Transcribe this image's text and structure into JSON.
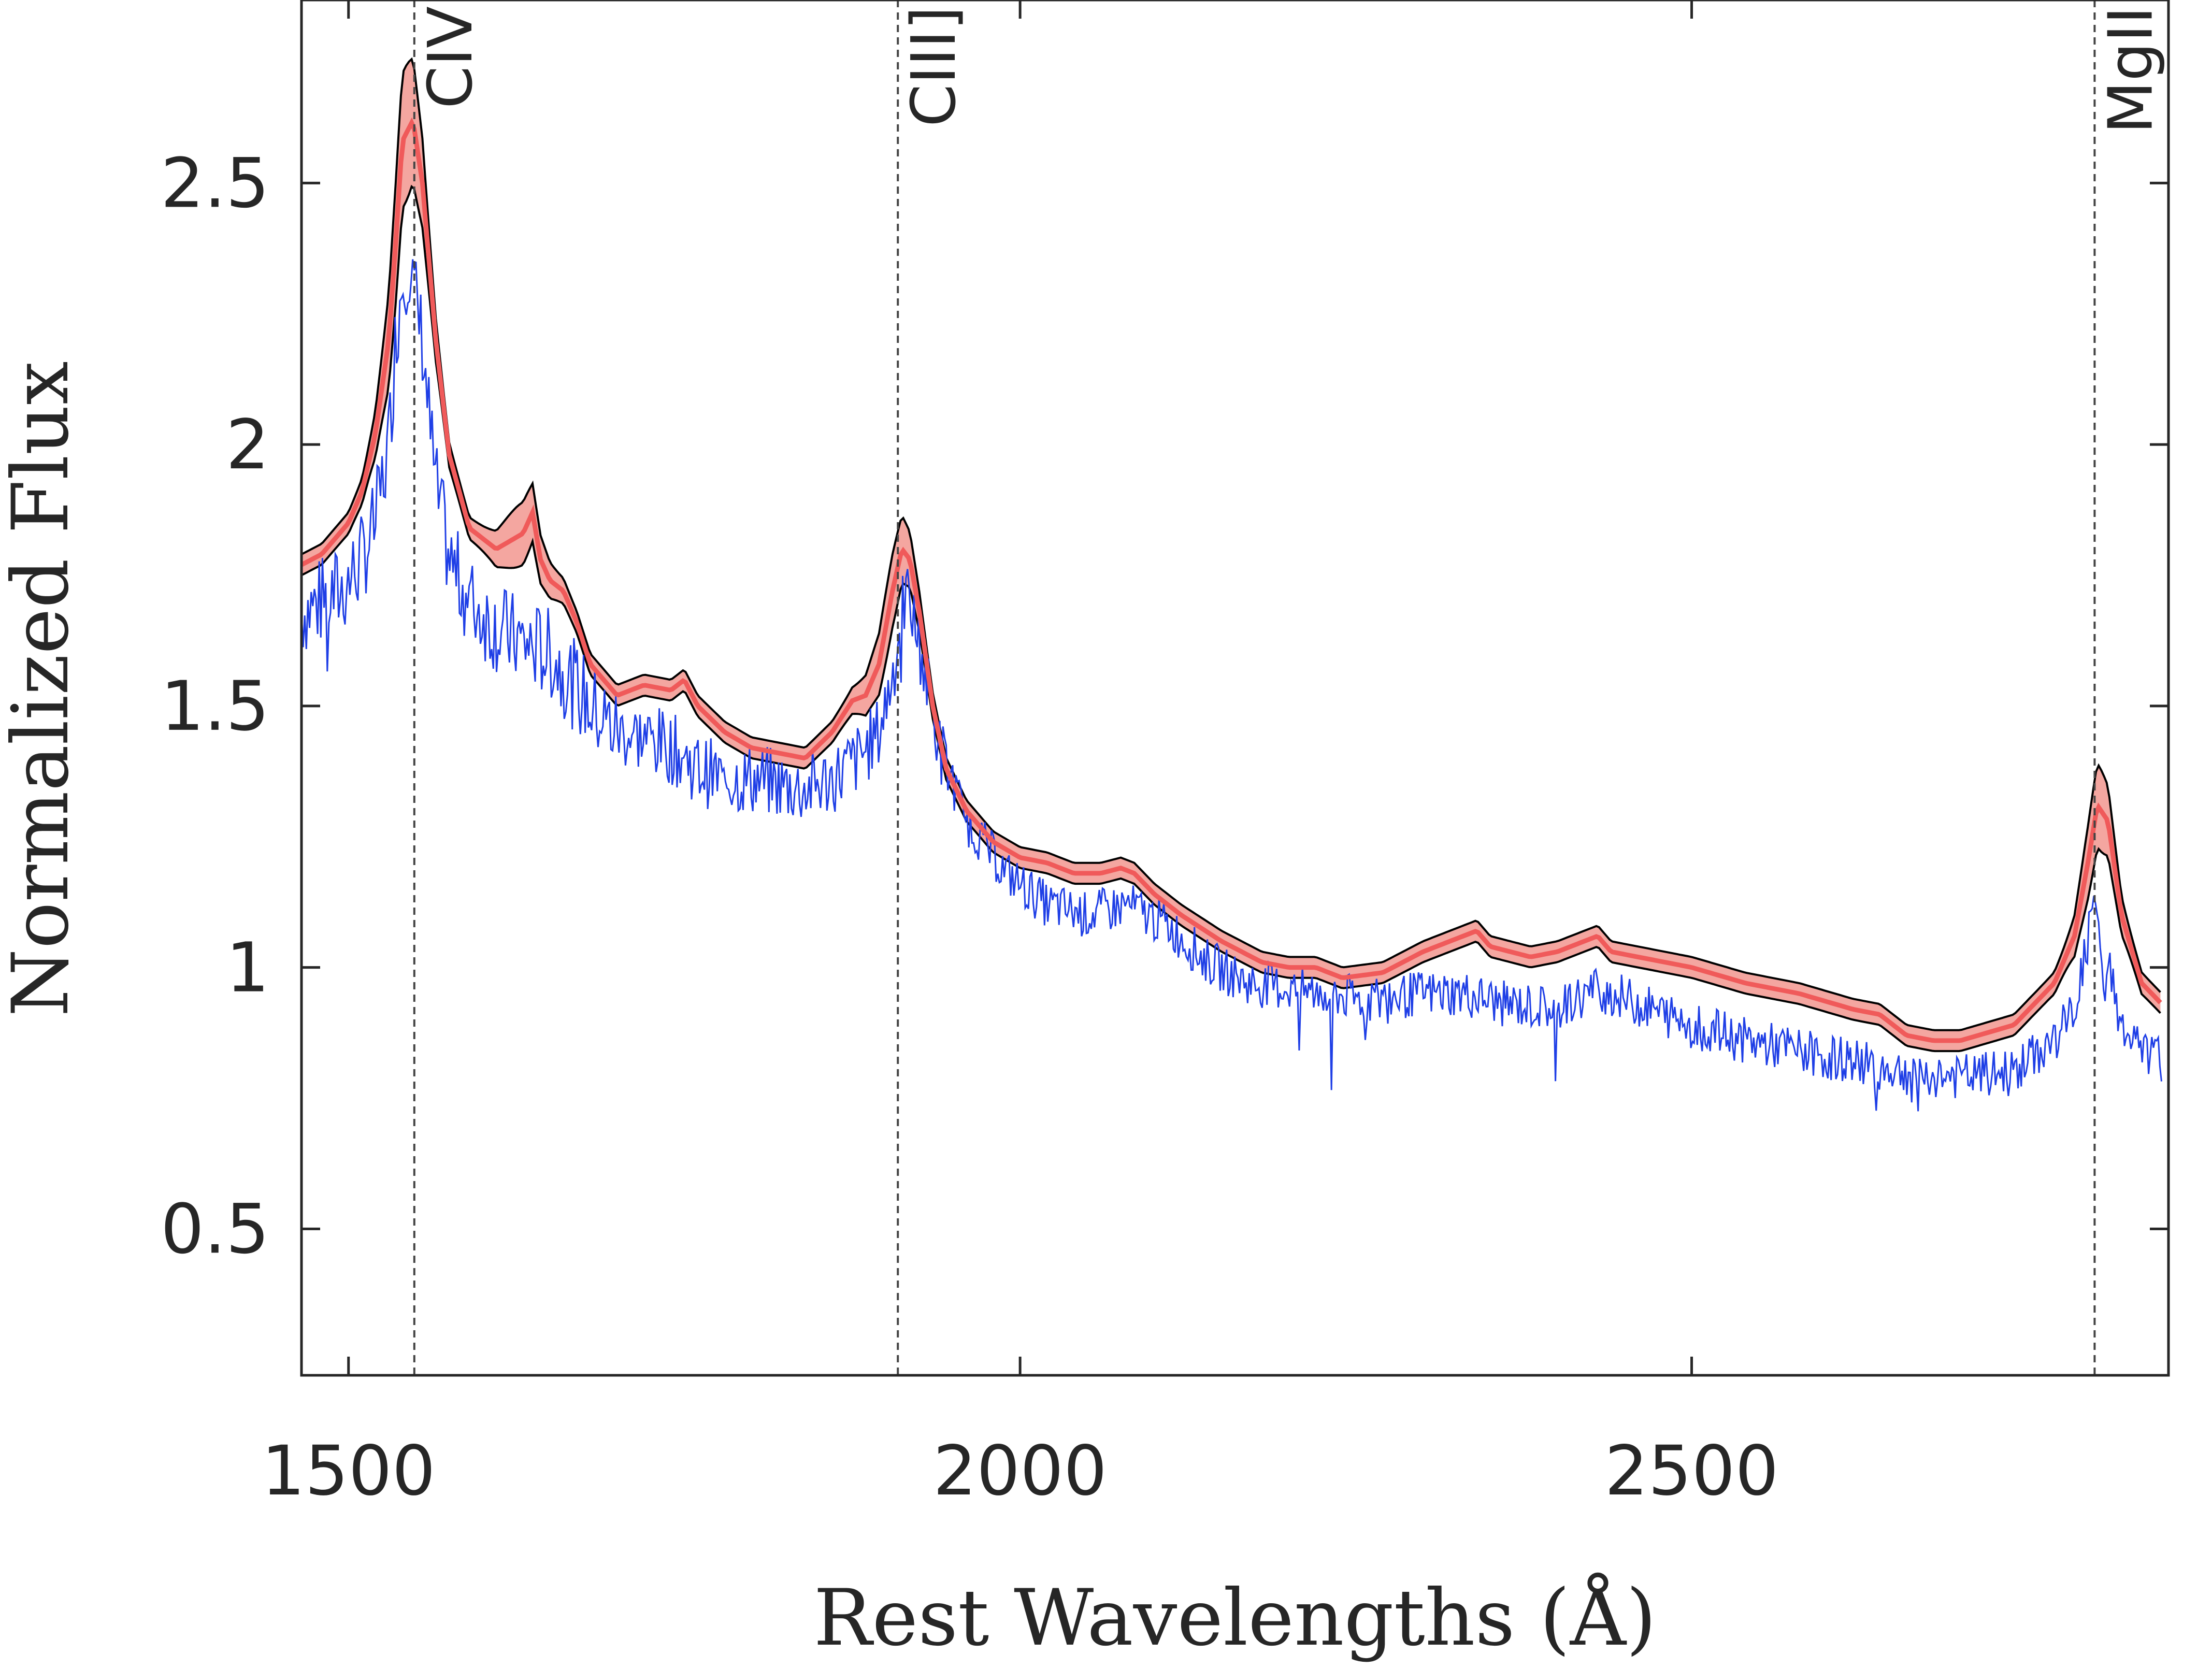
{
  "chart_data": {
    "type": "line",
    "xlabel": "Rest Wavelengths (Å)",
    "ylabel": "Normalized Flux",
    "xlim": [
      1465,
      2855
    ],
    "ylim": [
      0.22,
      2.85
    ],
    "xticks": [
      1500,
      2000,
      2500
    ],
    "yticks": [
      0.5,
      1,
      1.5,
      2,
      2.5
    ],
    "xtick_labels": [
      "1500",
      "2000",
      "2500"
    ],
    "ytick_labels": [
      "0.5",
      "1",
      "1.5",
      "2",
      "2.5"
    ],
    "grid": false,
    "colors": {
      "observed": "#1f3fe6",
      "prediction": "#f05a5a",
      "band": "#f4a6a0",
      "band_edges": "#000000",
      "reference_lines": "#444444"
    },
    "emission_lines": [
      {
        "label": "CIV",
        "x": 1549
      },
      {
        "label": "CIII]",
        "x": 1909
      },
      {
        "label": "MgII",
        "x": 2800
      }
    ],
    "series": [
      {
        "role": "prediction",
        "x": [
          1465,
          1480,
          1500,
          1510,
          1520,
          1530,
          1535,
          1540,
          1548,
          1555,
          1565,
          1575,
          1590,
          1610,
          1630,
          1637,
          1643,
          1650,
          1660,
          1670,
          1680,
          1700,
          1720,
          1740,
          1750,
          1760,
          1780,
          1800,
          1820,
          1840,
          1860,
          1875,
          1885,
          1895,
          1905,
          1912,
          1918,
          1925,
          1935,
          1945,
          1960,
          1980,
          2000,
          2020,
          2040,
          2060,
          2075,
          2085,
          2100,
          2120,
          2150,
          2180,
          2200,
          2220,
          2240,
          2270,
          2300,
          2330,
          2340,
          2350,
          2380,
          2400,
          2420,
          2430,
          2440,
          2460,
          2500,
          2540,
          2580,
          2620,
          2640,
          2660,
          2680,
          2700,
          2740,
          2770,
          2785,
          2795,
          2802,
          2810,
          2820,
          2835,
          2850
        ],
        "y": [
          1.77,
          1.79,
          1.85,
          1.91,
          2.02,
          2.2,
          2.38,
          2.58,
          2.62,
          2.5,
          2.2,
          1.98,
          1.84,
          1.8,
          1.83,
          1.87,
          1.78,
          1.74,
          1.72,
          1.66,
          1.58,
          1.52,
          1.54,
          1.53,
          1.55,
          1.5,
          1.45,
          1.42,
          1.41,
          1.4,
          1.45,
          1.51,
          1.52,
          1.58,
          1.72,
          1.8,
          1.78,
          1.68,
          1.5,
          1.38,
          1.3,
          1.24,
          1.21,
          1.2,
          1.18,
          1.18,
          1.19,
          1.18,
          1.14,
          1.1,
          1.05,
          1.01,
          1.0,
          1.0,
          0.98,
          0.99,
          1.03,
          1.06,
          1.07,
          1.04,
          1.02,
          1.03,
          1.05,
          1.06,
          1.03,
          1.02,
          1.0,
          0.97,
          0.95,
          0.92,
          0.91,
          0.87,
          0.86,
          0.86,
          0.89,
          0.97,
          1.06,
          1.2,
          1.31,
          1.28,
          1.1,
          0.97,
          0.93
        ]
      },
      {
        "role": "observed",
        "x": [
          1465,
          1480,
          1495,
          1510,
          1520,
          1530,
          1535,
          1540,
          1545,
          1555,
          1560,
          1565,
          1575,
          1590,
          1610,
          1630,
          1650,
          1665,
          1680,
          1700,
          1720,
          1740,
          1760,
          1780,
          1800,
          1820,
          1840,
          1860,
          1880,
          1895,
          1905,
          1915,
          1925,
          1940,
          1960,
          1990,
          2020,
          2050,
          2080,
          2110,
          2140,
          2170,
          2200,
          2230,
          2250,
          2270,
          2300,
          2330,
          2360,
          2400,
          2430,
          2460,
          2500,
          2540,
          2580,
          2620,
          2660,
          2700,
          2740,
          2770,
          2785,
          2795,
          2800,
          2806,
          2812,
          2820,
          2835,
          2850
        ],
        "y": [
          1.68,
          1.7,
          1.72,
          1.78,
          1.85,
          2.0,
          2.2,
          2.32,
          2.35,
          2.2,
          2.05,
          1.92,
          1.78,
          1.7,
          1.65,
          1.62,
          1.6,
          1.55,
          1.5,
          1.45,
          1.44,
          1.42,
          1.38,
          1.36,
          1.36,
          1.35,
          1.34,
          1.36,
          1.4,
          1.45,
          1.56,
          1.72,
          1.62,
          1.42,
          1.28,
          1.18,
          1.12,
          1.1,
          1.12,
          1.08,
          1.01,
          0.97,
          0.96,
          0.95,
          0.94,
          0.94,
          0.95,
          0.95,
          0.93,
          0.92,
          0.96,
          0.93,
          0.89,
          0.86,
          0.84,
          0.82,
          0.8,
          0.79,
          0.8,
          0.86,
          0.92,
          1.05,
          1.15,
          0.95,
          1.0,
          0.88,
          0.84,
          0.82
        ]
      }
    ]
  }
}
